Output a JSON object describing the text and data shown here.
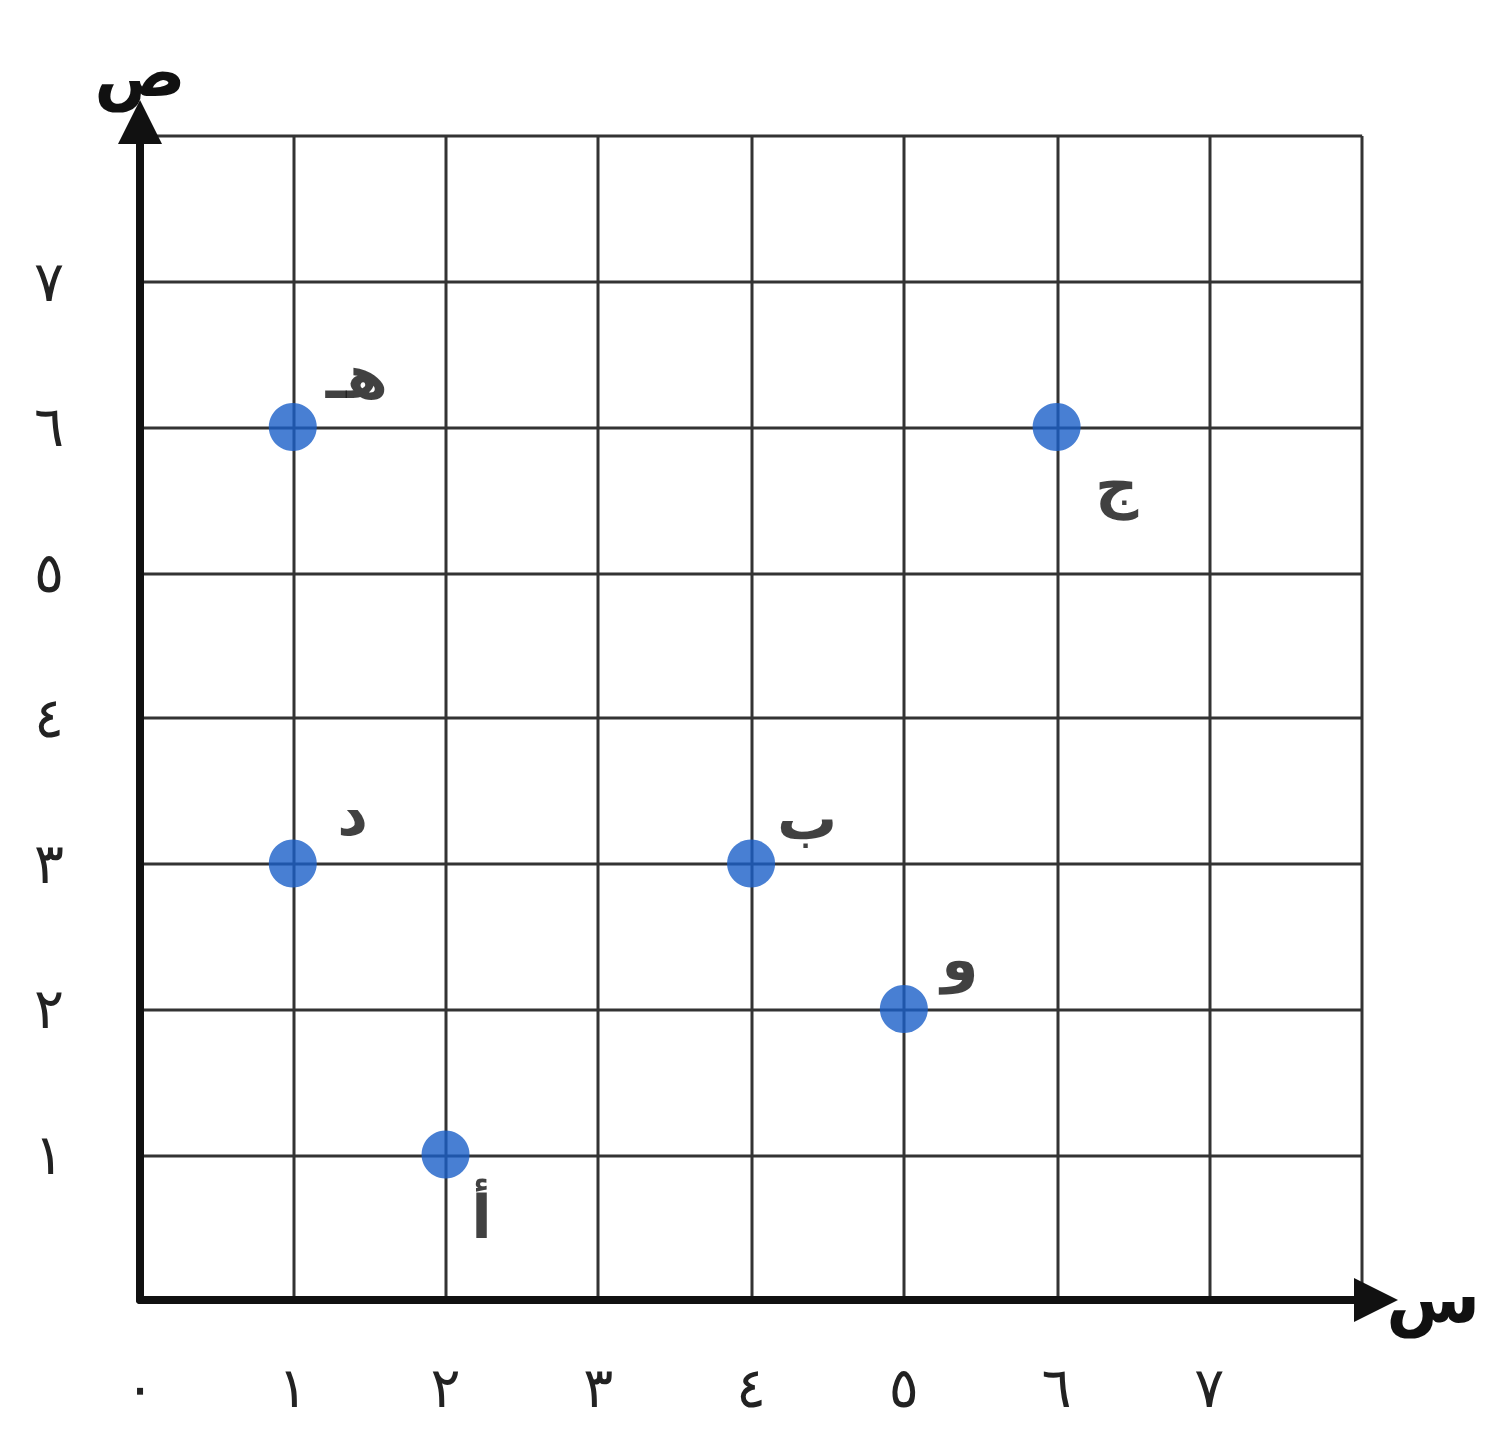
{
  "chart_data": {
    "type": "scatter",
    "xlabel": "س",
    "ylabel": "ص",
    "x": [
      2,
      4,
      6,
      1,
      1,
      5
    ],
    "series": [
      {
        "color": "#1a5fc8",
        "values": [
          1,
          3,
          6,
          3,
          6,
          2
        ]
      }
    ],
    "xlim": [
      0,
      8
    ],
    "ylim": [
      0,
      8
    ],
    "xticks": [
      {
        "value": 0,
        "label": "٠"
      },
      {
        "value": 1,
        "label": "١"
      },
      {
        "value": 2,
        "label": "٢"
      },
      {
        "value": 3,
        "label": "٣"
      },
      {
        "value": 4,
        "label": "٤"
      },
      {
        "value": 5,
        "label": "٥"
      },
      {
        "value": 6,
        "label": "٦"
      },
      {
        "value": 7,
        "label": "٧"
      },
      {
        "value": 8,
        "label": null
      }
    ],
    "yticks": [
      {
        "value": 0,
        "label": null
      },
      {
        "value": 1,
        "label": "١"
      },
      {
        "value": 2,
        "label": "٢"
      },
      {
        "value": 3,
        "label": "٣"
      },
      {
        "value": 4,
        "label": "٤"
      },
      {
        "value": 5,
        "label": "٥"
      },
      {
        "value": 6,
        "label": "٦"
      },
      {
        "value": 7,
        "label": "٧"
      },
      {
        "value": 8,
        "label": null
      }
    ],
    "annotations": [
      {
        "text": "أ",
        "x": 2,
        "y": 1
      },
      {
        "text": "ب",
        "x": 4,
        "y": 3
      },
      {
        "text": "ج",
        "x": 6,
        "y": 6
      },
      {
        "text": "د",
        "x": 1,
        "y": 3
      },
      {
        "text": "هـ",
        "x": 1,
        "y": 6
      },
      {
        "text": "و",
        "x": 5,
        "y": 2
      }
    ],
    "grid": true,
    "marker": "circle"
  }
}
